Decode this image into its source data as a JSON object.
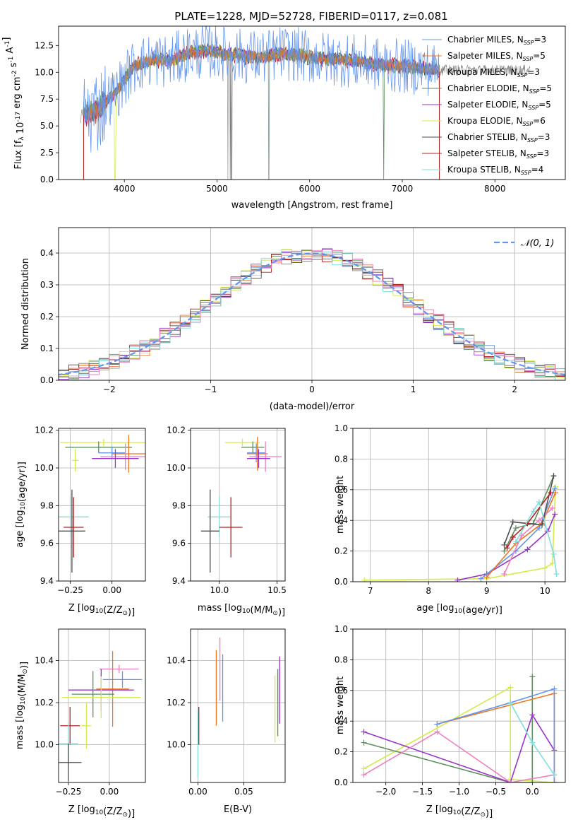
{
  "figure": {
    "title": "PLATE=1228, MJD=52728, FIBERID=0117, z=0.081"
  },
  "chart_data": [
    {
      "id": "spectrum",
      "type": "line",
      "xlabel": "wavelength [Angstrom, rest frame]",
      "ylabel": "Flux [f_λ 10^-17 erg cm^-2 s^-1 A^-1]",
      "xlim": [
        3290,
        8760
      ],
      "ylim": [
        0,
        14.3
      ],
      "xticks": [
        4000,
        5000,
        6000,
        7000,
        8000
      ],
      "yticks": [
        0.0,
        2.5,
        5.0,
        7.5,
        10.0,
        12.5
      ],
      "grid": false,
      "legend_position": "top-right",
      "envelope_x": [
        3500,
        3700,
        3900,
        4000,
        4100,
        4300,
        4500,
        4700,
        4900,
        5100,
        5300,
        5500,
        5700,
        5900,
        6100,
        6300,
        6500,
        6700,
        6900,
        7100,
        7300,
        7400
      ],
      "envelope_y": [
        5.8,
        6.5,
        8.0,
        9.3,
        10.5,
        11.2,
        11.0,
        11.8,
        12.0,
        11.7,
        11.5,
        11.4,
        11.8,
        11.6,
        11.3,
        11.2,
        11.0,
        10.8,
        10.6,
        10.5,
        10.3,
        10.2
      ],
      "series": [
        {
          "name": "Chabrier MILES, N_SSP=3",
          "color": "#6495ed"
        },
        {
          "name": "Salpeter MILES, N_SSP=5",
          "color": "#ee7621"
        },
        {
          "name": "Kroupa MILES, N_SSP=3",
          "color": "#808080"
        },
        {
          "name": "Chabrier ELODIE, N_SSP=5",
          "color": "#5f8f5f"
        },
        {
          "name": "Salpeter ELODIE, N_SSP=5",
          "color": "#9932cc"
        },
        {
          "name": "Kroupa ELODIE, N_SSP=6",
          "color": "#d4ec4a"
        },
        {
          "name": "Chabrier STELIB, N_SSP=3",
          "color": "#4d4d4d"
        },
        {
          "name": "Salpeter STELIB, N_SSP=3",
          "color": "#b22222"
        },
        {
          "name": "Kroupa STELIB, N_SSP=4",
          "color": "#7fdedc"
        }
      ],
      "legend_entries": [
        {
          "prefix": "Chabrier MILES, N",
          "sub": "SSP",
          "suffix": "=3"
        },
        {
          "prefix": "Salpeter MILES, N",
          "sub": "SSP",
          "suffix": "=5"
        },
        {
          "prefix": "Kroupa MILES, N",
          "sub": "SSP",
          "suffix": "=3"
        },
        {
          "prefix": "Chabrier ELODIE, N",
          "sub": "SSP",
          "suffix": "=5"
        },
        {
          "prefix": "Salpeter ELODIE, N",
          "sub": "SSP",
          "suffix": "=5"
        },
        {
          "prefix": "Kroupa ELODIE, N",
          "sub": "SSP",
          "suffix": "=6"
        },
        {
          "prefix": "Chabrier STELIB, N",
          "sub": "SSP",
          "suffix": "=3"
        },
        {
          "prefix": "Salpeter STELIB, N",
          "sub": "SSP",
          "suffix": "=3"
        },
        {
          "prefix": "Kroupa STELIB, N",
          "sub": "SSP",
          "suffix": "=4"
        }
      ]
    },
    {
      "id": "residuals",
      "type": "line",
      "xlabel": "(data-model)/error",
      "ylabel": "Normed distribution",
      "xlim": [
        -2.5,
        2.5
      ],
      "ylim": [
        0,
        0.48
      ],
      "xticks": [
        -2,
        -1,
        0,
        1,
        2
      ],
      "yticks": [
        0.0,
        0.1,
        0.2,
        0.3,
        0.4
      ],
      "grid": true,
      "legend_position": "top-right",
      "gaussian": {
        "label": "𝒩(0, 1)",
        "color": "#6495ed",
        "mean": 0,
        "sigma": 1
      },
      "bin_width": 0.1,
      "bin_start": -2.6
    },
    {
      "id": "z_age",
      "type": "scatter",
      "xlabel": "Z [log10(Z/Z⊙)]",
      "ylabel": "age [log10(age/yr)]",
      "xlim": [
        -0.32,
        0.2
      ],
      "ylim": [
        9.4,
        10.21
      ],
      "xticks": [
        -0.25,
        0.0
      ],
      "yticks": [
        9.4,
        9.6,
        9.8,
        10.0,
        10.2
      ],
      "grid": true,
      "points": [
        {
          "x": -0.05,
          "y": 10.135,
          "xerr": 0.26,
          "yerr": 0.02,
          "color": "#d4ec4a"
        },
        {
          "x": -0.08,
          "y": 10.11,
          "xerr": 0.2,
          "yerr": 0.03,
          "color": "#5f8f5f"
        },
        {
          "x": 0.0,
          "y": 10.08,
          "xerr": 0.08,
          "yerr": 0.03,
          "color": "#6495ed"
        },
        {
          "x": 0.1,
          "y": 10.075,
          "xerr": 0.1,
          "yerr": 0.1,
          "color": "#ee7621"
        },
        {
          "x": 0.08,
          "y": 10.06,
          "xerr": 0.15,
          "yerr": 0.07,
          "color": "#ee7fbf"
        },
        {
          "x": 0.02,
          "y": 10.05,
          "xerr": 0.14,
          "yerr": 0.05,
          "color": "#9932cc"
        },
        {
          "x": -0.22,
          "y": 10.04,
          "xerr": 0.02,
          "yerr": 0.06,
          "color": "#d4ec4a"
        },
        {
          "x": -0.25,
          "y": 9.74,
          "xerr": 0.11,
          "yerr": 0.11,
          "color": "#7fdedc"
        },
        {
          "x": -0.23,
          "y": 9.685,
          "xerr": 0.06,
          "yerr": 0.16,
          "color": "#b22222"
        },
        {
          "x": -0.24,
          "y": 9.665,
          "xerr": 0.08,
          "yerr": 0.22,
          "color": "#4d4d4d"
        }
      ]
    },
    {
      "id": "mass_age",
      "type": "scatter",
      "xlabel": "mass [log10(M/M⊙)]",
      "ylabel": "",
      "xlim": [
        9.75,
        10.57
      ],
      "ylim": [
        9.4,
        10.21
      ],
      "xticks": [
        10.0,
        10.5
      ],
      "yticks": [
        9.4,
        9.6,
        9.8,
        10.0,
        10.2
      ],
      "grid": true,
      "points": [
        {
          "x": 10.2,
          "y": 10.135,
          "xerr": 0.15,
          "yerr": 0.02,
          "color": "#d4ec4a"
        },
        {
          "x": 10.29,
          "y": 10.11,
          "xerr": 0.1,
          "yerr": 0.03,
          "color": "#5f8f5f"
        },
        {
          "x": 10.32,
          "y": 10.08,
          "xerr": 0.08,
          "yerr": 0.05,
          "color": "#6495ed"
        },
        {
          "x": 10.33,
          "y": 10.075,
          "xerr": 0.09,
          "yerr": 0.09,
          "color": "#ee7621"
        },
        {
          "x": 10.4,
          "y": 10.06,
          "xerr": 0.14,
          "yerr": 0.08,
          "color": "#ee7fbf"
        },
        {
          "x": 10.34,
          "y": 10.05,
          "xerr": 0.1,
          "yerr": 0.05,
          "color": "#9932cc"
        },
        {
          "x": 10.0,
          "y": 9.74,
          "xerr": 0.1,
          "yerr": 0.11,
          "color": "#7fdedc"
        },
        {
          "x": 10.1,
          "y": 9.685,
          "xerr": 0.1,
          "yerr": 0.16,
          "color": "#b22222"
        },
        {
          "x": 9.92,
          "y": 9.665,
          "xerr": 0.08,
          "yerr": 0.22,
          "color": "#4d4d4d"
        }
      ]
    },
    {
      "id": "age_weight",
      "type": "line",
      "xlabel": "age [log10(age/yr)]",
      "ylabel": "mass weight",
      "xlim": [
        6.7,
        10.35
      ],
      "ylim": [
        0,
        1.0
      ],
      "xticks": [
        7,
        8,
        9,
        10
      ],
      "yticks": [
        0.0,
        0.2,
        0.4,
        0.6,
        0.8,
        1.0
      ],
      "grid": true,
      "series": [
        {
          "color": "#d4ec4a",
          "x": [
            6.9,
            9.0,
            10.0,
            10.13,
            10.18
          ],
          "y": [
            0.01,
            0.02,
            0.09,
            0.12,
            0.62
          ]
        },
        {
          "color": "#9932cc",
          "x": [
            8.5,
            9.0,
            9.7,
            10.05,
            10.17
          ],
          "y": [
            0.01,
            0.05,
            0.21,
            0.33,
            0.44
          ]
        },
        {
          "color": "#6495ed",
          "x": [
            8.9,
            9.5,
            9.9,
            10.17
          ],
          "y": [
            0.02,
            0.2,
            0.35,
            0.61
          ]
        },
        {
          "color": "#ee7621",
          "x": [
            9.0,
            9.5,
            9.95,
            10.18
          ],
          "y": [
            0.03,
            0.25,
            0.38,
            0.58
          ]
        },
        {
          "color": "#ee7fbf",
          "x": [
            9.3,
            9.6,
            9.9,
            10.13
          ],
          "y": [
            0.05,
            0.3,
            0.4,
            0.48
          ]
        },
        {
          "color": "#5f8f5f",
          "x": [
            9.3,
            9.5,
            9.8,
            10.15
          ],
          "y": [
            0.2,
            0.35,
            0.38,
            0.69
          ]
        },
        {
          "color": "#4d4d4d",
          "x": [
            9.3,
            9.45,
            9.95,
            10.15
          ],
          "y": [
            0.24,
            0.39,
            0.37,
            0.69
          ]
        },
        {
          "color": "#b22222",
          "x": [
            9.35,
            9.45,
            9.7,
            10.1
          ],
          "y": [
            0.22,
            0.29,
            0.38,
            0.58
          ]
        },
        {
          "color": "#7fdedc",
          "x": [
            9.5,
            9.8,
            9.9,
            10.15,
            10.2
          ],
          "y": [
            0.26,
            0.46,
            0.52,
            0.18,
            0.05
          ]
        }
      ]
    },
    {
      "id": "z_mass",
      "type": "scatter",
      "xlabel": "Z [log10(Z/Z⊙)]",
      "ylabel": "mass [log10(M/M⊙)]",
      "xlim": [
        -0.31,
        0.22
      ],
      "ylim": [
        9.82,
        10.55
      ],
      "xticks": [
        -0.25,
        0.0
      ],
      "yticks": [
        10.0,
        10.2,
        10.4
      ],
      "grid": true,
      "points": [
        {
          "x": 0.06,
          "y": 10.36,
          "xerr": 0.12,
          "yerr": 0.02,
          "color": "#ee7fbf"
        },
        {
          "x": 0.08,
          "y": 10.31,
          "xerr": 0.12,
          "yerr": 0.04,
          "color": "#6495ed"
        },
        {
          "x": 0.02,
          "y": 10.265,
          "xerr": 0.1,
          "yerr": 0.18,
          "color": "#ee7621"
        },
        {
          "x": -0.05,
          "y": 10.26,
          "xerr": 0.2,
          "yerr": 0.1,
          "color": "#9932cc"
        },
        {
          "x": -0.1,
          "y": 10.24,
          "xerr": 0.13,
          "yerr": 0.11,
          "color": "#5f8f5f"
        },
        {
          "x": -0.05,
          "y": 10.225,
          "xerr": 0.24,
          "yerr": 0.1,
          "color": "#d4ec4a"
        },
        {
          "x": -0.24,
          "y": 10.09,
          "xerr": 0.06,
          "yerr": 0.09,
          "color": "#b22222"
        },
        {
          "x": -0.14,
          "y": 10.09,
          "xerr": 0.03,
          "yerr": 0.11,
          "color": "#d4ec4a"
        },
        {
          "x": -0.25,
          "y": 10.005,
          "xerr": 0.06,
          "yerr": 0.1,
          "color": "#7fdedc"
        },
        {
          "x": -0.25,
          "y": 9.915,
          "xerr": 0.08,
          "yerr": 0.09,
          "color": "#4d4d4d"
        }
      ]
    },
    {
      "id": "ebv_mass",
      "type": "scatter",
      "xlabel": "E(B-V)",
      "ylabel": "",
      "xlim": [
        -0.008,
        0.095
      ],
      "ylim": [
        9.82,
        10.55
      ],
      "xticks": [
        0.0,
        0.05
      ],
      "yticks": [
        10.0,
        10.2,
        10.4
      ],
      "grid": true,
      "points": [
        {
          "x": 0.0,
          "y": 10.005,
          "yerr": 0.16,
          "color": "#7fdedc"
        },
        {
          "x": 0.001,
          "y": 10.09,
          "yerr": 0.09,
          "color": "#b22222"
        },
        {
          "x": 0.02,
          "y": 10.27,
          "yerr": 0.18,
          "color": "#ee7621"
        },
        {
          "x": 0.024,
          "y": 10.36,
          "yerr": 0.15,
          "color": "#ee7fbf"
        },
        {
          "x": 0.027,
          "y": 10.27,
          "yerr": 0.16,
          "color": "#6495ed"
        },
        {
          "x": 0.084,
          "y": 10.17,
          "yerr": 0.16,
          "color": "#d4ec4a"
        },
        {
          "x": 0.087,
          "y": 10.2,
          "yerr": 0.16,
          "color": "#5f8f5f"
        },
        {
          "x": 0.089,
          "y": 10.26,
          "yerr": 0.16,
          "color": "#9932cc"
        }
      ]
    },
    {
      "id": "z_weight",
      "type": "line",
      "xlabel": "Z [log10(Z/Z⊙)]",
      "ylabel": "mass weight",
      "xlim": [
        -2.45,
        0.45
      ],
      "ylim": [
        0,
        1.0
      ],
      "xticks": [
        -2.0,
        -1.5,
        -1.0,
        -0.5,
        0.0
      ],
      "yticks": [
        0.0,
        0.2,
        0.4,
        0.6,
        0.8,
        1.0
      ],
      "grid": true,
      "series": [
        {
          "color": "#d4ec4a",
          "x": [
            -2.3,
            -0.3,
            -0.3,
            0.3
          ],
          "y": [
            0.09,
            0.62,
            0.02,
            0.0
          ]
        },
        {
          "color": "#5f8f5f",
          "x": [
            -2.3,
            -0.3,
            0.0,
            0.0
          ],
          "y": [
            0.26,
            0.0,
            0.0,
            0.69
          ]
        },
        {
          "color": "#9932cc",
          "x": [
            -2.3,
            -0.3,
            0.0,
            0.3
          ],
          "y": [
            0.33,
            0.0,
            0.44,
            0.21
          ]
        },
        {
          "color": "#ee7fbf",
          "x": [
            -2.3,
            -1.3,
            -0.3,
            0.3
          ],
          "y": [
            0.05,
            0.33,
            0.0,
            0.05
          ]
        },
        {
          "color": "#ee7621",
          "x": [
            -1.3,
            0.3,
            0.3
          ],
          "y": [
            0.38,
            0.58,
            0.0
          ]
        },
        {
          "color": "#6495ed",
          "x": [
            -1.3,
            -0.3,
            0.3,
            0.3
          ],
          "y": [
            0.38,
            0.52,
            0.61,
            0.0
          ]
        },
        {
          "color": "#7fdedc",
          "x": [
            -0.3,
            0.0,
            0.3
          ],
          "y": [
            0.52,
            0.26,
            0.05
          ]
        }
      ]
    }
  ]
}
